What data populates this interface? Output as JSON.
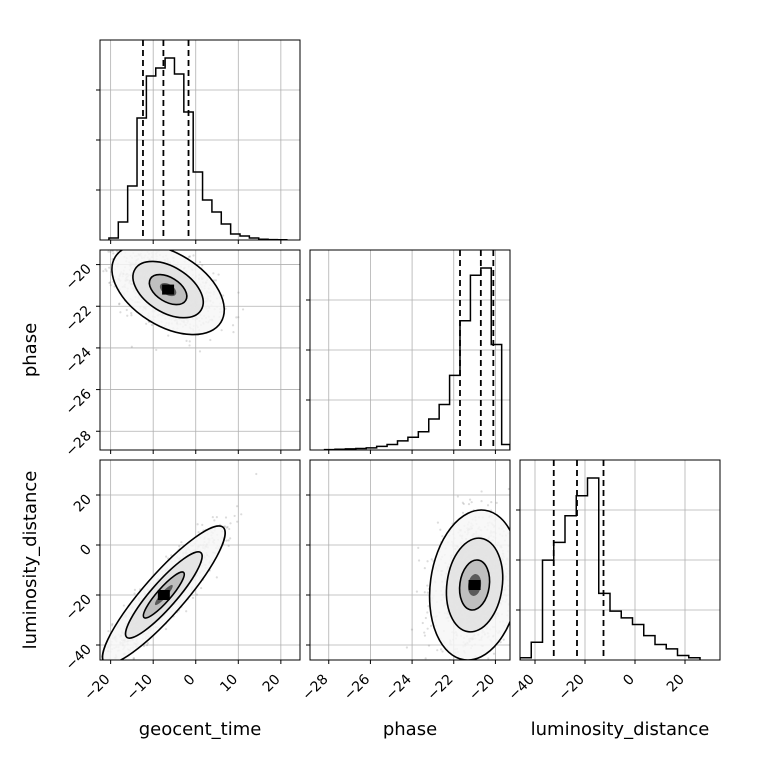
{
  "chart_data": {
    "type": "corner",
    "parameters": [
      "geocent_time",
      "phase",
      "luminosity_distance"
    ],
    "xlabels": [
      "geocent_time",
      "phase",
      "luminosity_distance"
    ],
    "ylabels": [
      "",
      "phase",
      "luminosity_distance"
    ],
    "ranges": {
      "geocent_time": [
        -22.5,
        24.5
      ],
      "phase": [
        -28.9,
        -19.3
      ],
      "luminosity_distance": [
        -46.0,
        34.0
      ]
    },
    "ticks": {
      "geocent_time": [
        -20,
        -10,
        0,
        10,
        20
      ],
      "phase": [
        -28,
        -26,
        -24,
        -22,
        -20
      ],
      "luminosity_distance": [
        -40,
        -20,
        0,
        20
      ]
    },
    "tick_labels": {
      "geocent_time": [
        "−20",
        "−10",
        "0",
        "10",
        "20"
      ],
      "phase": [
        "−28",
        "−26",
        "−24",
        "−22",
        "−20"
      ],
      "luminosity_distance": [
        "−40",
        "−20",
        "0",
        "20"
      ]
    },
    "grid": true,
    "histograms": [
      {
        "parameter": "geocent_time",
        "bin_edges": [
          -20.4,
          -18.2,
          -16.0,
          -13.8,
          -11.6,
          -9.4,
          -7.2,
          -5.0,
          -2.8,
          -0.6,
          1.6,
          3.8,
          6.0,
          8.2,
          10.4,
          12.6,
          14.8,
          17.0,
          19.2,
          21.4
        ],
        "counts": [
          0.01,
          0.09,
          0.27,
          0.61,
          0.82,
          0.86,
          0.91,
          0.83,
          0.64,
          0.34,
          0.2,
          0.14,
          0.08,
          0.03,
          0.02,
          0.01,
          0.004,
          0.002,
          0.001
        ],
        "quantiles": [
          -12.4,
          -7.6,
          -1.7
        ]
      },
      {
        "parameter": "phase",
        "bin_edges": [
          -28.2,
          -27.7,
          -27.2,
          -26.7,
          -26.2,
          -25.7,
          -25.2,
          -24.7,
          -24.2,
          -23.7,
          -23.2,
          -22.7,
          -22.2,
          -21.7,
          -21.2,
          -20.7,
          -20.2,
          -19.7,
          -19.3
        ],
        "counts": [
          0.002,
          0.004,
          0.006,
          0.008,
          0.012,
          0.02,
          0.03,
          0.05,
          0.07,
          0.1,
          0.17,
          0.25,
          0.41,
          0.71,
          0.96,
          1.0,
          0.58,
          0.03
        ],
        "quantiles": [
          -21.7,
          -20.7,
          -20.1
        ]
      },
      {
        "parameter": "luminosity_distance",
        "bin_edges": [
          -46.0,
          -41.5,
          -37.0,
          -32.5,
          -28.0,
          -23.5,
          -19.0,
          -14.5,
          -10.0,
          -5.5,
          -1.0,
          3.5,
          8.0,
          12.5,
          17.0,
          21.5,
          26.0
        ],
        "counts": [
          0.01,
          0.08,
          0.45,
          0.53,
          0.65,
          0.74,
          0.82,
          0.3,
          0.22,
          0.19,
          0.16,
          0.11,
          0.07,
          0.05,
          0.02,
          0.01
        ],
        "quantiles": [
          -32.5,
          -23.2,
          -12.6
        ]
      }
    ],
    "scatter_panels": [
      {
        "x": "geocent_time",
        "y": "phase",
        "center": [
          -6.5,
          -21.2
        ],
        "std": [
          5.5,
          0.9
        ],
        "correlation": -0.45
      },
      {
        "x": "geocent_time",
        "y": "luminosity_distance",
        "center": [
          -7.5,
          -20.0
        ],
        "std": [
          6.0,
          11.5
        ],
        "correlation": 0.9
      },
      {
        "x": "phase",
        "y": "luminosity_distance",
        "center": [
          -21.0,
          -16.0
        ],
        "std": [
          0.9,
          12.5
        ],
        "correlation": 0.15
      }
    ]
  }
}
